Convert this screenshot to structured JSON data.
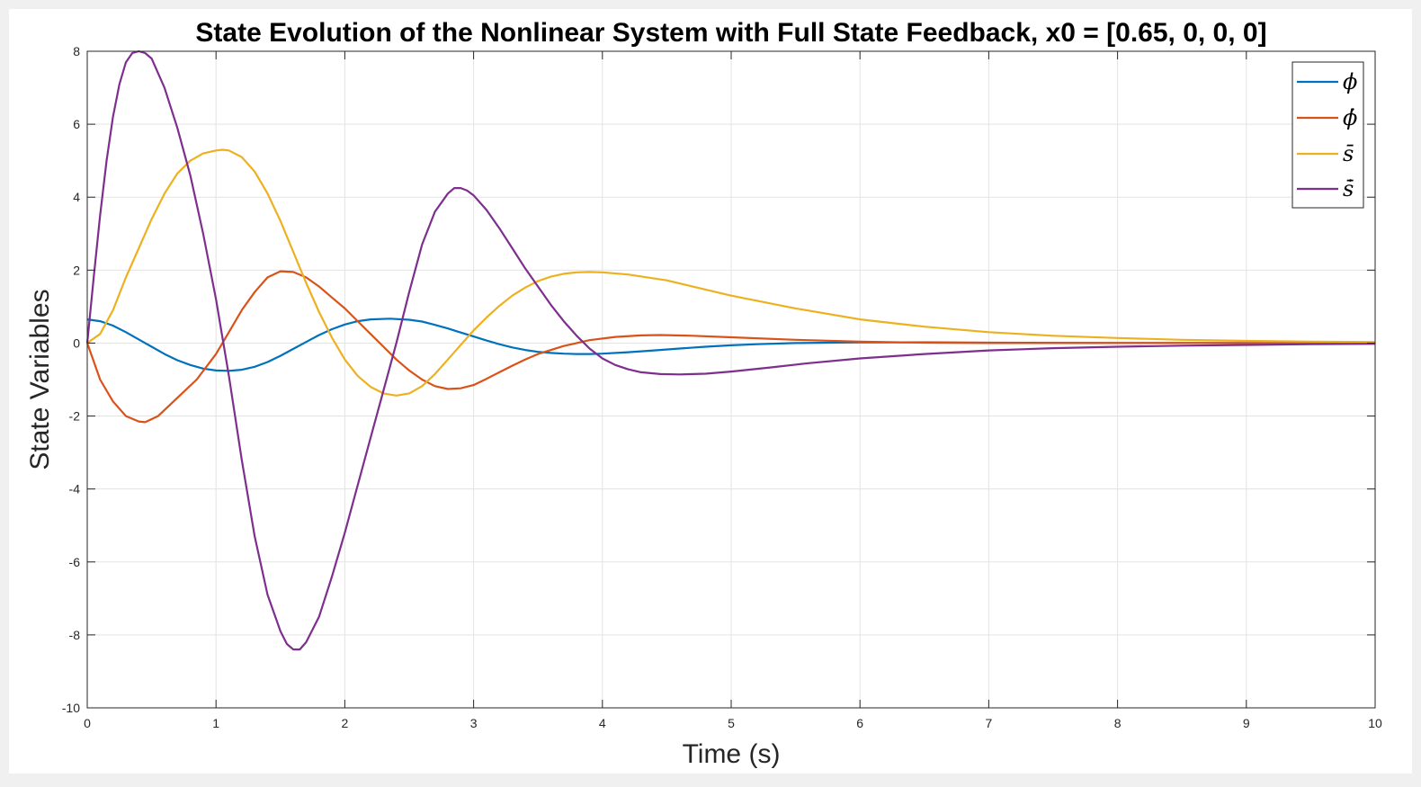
{
  "chart_data": {
    "type": "line",
    "title": "State Evolution of the Nonlinear System with Full State Feedback, x0 = [0.65, 0, 0, 0]",
    "xlabel": "Time (s)",
    "ylabel": "State Variables",
    "xlim": [
      0,
      10
    ],
    "ylim": [
      -10,
      8
    ],
    "xticks": [
      0,
      1,
      2,
      3,
      4,
      5,
      6,
      7,
      8,
      9,
      10
    ],
    "yticks": [
      -10,
      -8,
      -6,
      -4,
      -2,
      0,
      2,
      4,
      6,
      8
    ],
    "grid": true,
    "legend_position": "top-right",
    "series": [
      {
        "name": "ϕ",
        "color": "#0072BD",
        "x": [
          0,
          0.1,
          0.2,
          0.3,
          0.4,
          0.5,
          0.6,
          0.7,
          0.8,
          0.9,
          1.0,
          1.1,
          1.2,
          1.3,
          1.4,
          1.5,
          1.6,
          1.7,
          1.8,
          1.9,
          2.0,
          2.1,
          2.2,
          2.35,
          2.5,
          2.6,
          2.7,
          2.8,
          2.9,
          3.0,
          3.1,
          3.2,
          3.3,
          3.4,
          3.5,
          3.6,
          3.7,
          3.8,
          3.9,
          4.0,
          4.2,
          4.4,
          4.6,
          4.8,
          5.0,
          5.2,
          5.5,
          6.0,
          6.5,
          7.0,
          8.0,
          9.0,
          10.0
        ],
        "y": [
          0.65,
          0.6,
          0.48,
          0.3,
          0.1,
          -0.1,
          -0.3,
          -0.47,
          -0.6,
          -0.7,
          -0.75,
          -0.76,
          -0.73,
          -0.65,
          -0.52,
          -0.35,
          -0.16,
          0.03,
          0.22,
          0.38,
          0.51,
          0.6,
          0.65,
          0.67,
          0.64,
          0.59,
          0.5,
          0.4,
          0.29,
          0.18,
          0.07,
          -0.03,
          -0.12,
          -0.19,
          -0.24,
          -0.27,
          -0.29,
          -0.3,
          -0.3,
          -0.29,
          -0.25,
          -0.2,
          -0.15,
          -0.1,
          -0.06,
          -0.03,
          0.0,
          0.02,
          0.02,
          0.01,
          0.0,
          0.0,
          0.0
        ]
      },
      {
        "name": "ϕ̇",
        "color": "#D95319",
        "x": [
          0,
          0.05,
          0.1,
          0.2,
          0.3,
          0.4,
          0.45,
          0.55,
          0.7,
          0.85,
          1.0,
          1.1,
          1.2,
          1.3,
          1.4,
          1.5,
          1.6,
          1.7,
          1.8,
          1.9,
          2.0,
          2.1,
          2.2,
          2.3,
          2.4,
          2.5,
          2.6,
          2.7,
          2.8,
          2.9,
          3.0,
          3.1,
          3.2,
          3.3,
          3.4,
          3.5,
          3.7,
          3.9,
          4.1,
          4.3,
          4.45,
          4.7,
          5.0,
          5.5,
          6.0,
          6.5,
          7.0,
          8.0,
          9.0,
          10.0
        ],
        "y": [
          0,
          -0.5,
          -1.0,
          -1.6,
          -2.0,
          -2.15,
          -2.17,
          -2.0,
          -1.5,
          -1.0,
          -0.3,
          0.3,
          0.9,
          1.4,
          1.8,
          1.97,
          1.95,
          1.8,
          1.55,
          1.25,
          0.95,
          0.6,
          0.25,
          -0.1,
          -0.45,
          -0.75,
          -1.0,
          -1.18,
          -1.26,
          -1.24,
          -1.15,
          -0.98,
          -0.8,
          -0.62,
          -0.45,
          -0.3,
          -0.08,
          0.08,
          0.17,
          0.21,
          0.22,
          0.2,
          0.16,
          0.09,
          0.04,
          0.01,
          0.0,
          0.0,
          0.0,
          0.0
        ]
      },
      {
        "name": "s̄",
        "color": "#EDB120",
        "x": [
          0,
          0.1,
          0.2,
          0.3,
          0.4,
          0.5,
          0.6,
          0.7,
          0.8,
          0.9,
          1.0,
          1.05,
          1.1,
          1.2,
          1.3,
          1.4,
          1.5,
          1.6,
          1.7,
          1.8,
          1.9,
          2.0,
          2.1,
          2.2,
          2.3,
          2.4,
          2.5,
          2.6,
          2.7,
          2.8,
          2.9,
          3.0,
          3.1,
          3.2,
          3.3,
          3.4,
          3.5,
          3.6,
          3.7,
          3.8,
          3.9,
          4.0,
          4.2,
          4.5,
          5.0,
          5.5,
          6.0,
          6.5,
          7.0,
          7.5,
          8.0,
          8.5,
          9.0,
          9.5,
          10.0
        ],
        "y": [
          0,
          0.25,
          0.9,
          1.8,
          2.6,
          3.4,
          4.1,
          4.65,
          5.0,
          5.2,
          5.28,
          5.3,
          5.28,
          5.1,
          4.7,
          4.1,
          3.35,
          2.5,
          1.65,
          0.85,
          0.15,
          -0.45,
          -0.9,
          -1.2,
          -1.38,
          -1.44,
          -1.38,
          -1.18,
          -0.85,
          -0.45,
          -0.05,
          0.35,
          0.7,
          1.02,
          1.3,
          1.52,
          1.7,
          1.82,
          1.9,
          1.94,
          1.95,
          1.94,
          1.88,
          1.72,
          1.3,
          0.95,
          0.65,
          0.45,
          0.3,
          0.2,
          0.14,
          0.09,
          0.06,
          0.04,
          0.03
        ]
      },
      {
        "name": "s̄̇",
        "color": "#7E2F8E",
        "x": [
          0,
          0.05,
          0.1,
          0.15,
          0.2,
          0.25,
          0.3,
          0.35,
          0.4,
          0.45,
          0.5,
          0.6,
          0.7,
          0.8,
          0.9,
          1.0,
          1.1,
          1.2,
          1.3,
          1.4,
          1.5,
          1.55,
          1.6,
          1.65,
          1.7,
          1.8,
          1.9,
          2.0,
          2.1,
          2.2,
          2.3,
          2.4,
          2.5,
          2.6,
          2.7,
          2.8,
          2.85,
          2.9,
          2.95,
          3.0,
          3.1,
          3.2,
          3.3,
          3.4,
          3.5,
          3.6,
          3.7,
          3.8,
          3.9,
          4.0,
          4.1,
          4.2,
          4.3,
          4.45,
          4.6,
          4.8,
          5.0,
          5.3,
          5.6,
          6.0,
          6.5,
          7.0,
          7.5,
          8.0,
          8.5,
          9.0,
          9.5,
          10.0
        ],
        "y": [
          0,
          1.8,
          3.5,
          5.0,
          6.2,
          7.1,
          7.7,
          7.95,
          8.0,
          7.95,
          7.8,
          7.0,
          5.9,
          4.6,
          3.0,
          1.2,
          -0.9,
          -3.2,
          -5.3,
          -6.9,
          -7.9,
          -8.25,
          -8.4,
          -8.4,
          -8.2,
          -7.5,
          -6.4,
          -5.2,
          -3.9,
          -2.6,
          -1.3,
          0.0,
          1.4,
          2.7,
          3.6,
          4.1,
          4.25,
          4.25,
          4.18,
          4.05,
          3.65,
          3.15,
          2.6,
          2.05,
          1.55,
          1.05,
          0.6,
          0.2,
          -0.15,
          -0.42,
          -0.6,
          -0.72,
          -0.8,
          -0.85,
          -0.86,
          -0.84,
          -0.78,
          -0.67,
          -0.55,
          -0.42,
          -0.3,
          -0.2,
          -0.14,
          -0.1,
          -0.07,
          -0.05,
          -0.03,
          -0.02
        ]
      }
    ]
  }
}
